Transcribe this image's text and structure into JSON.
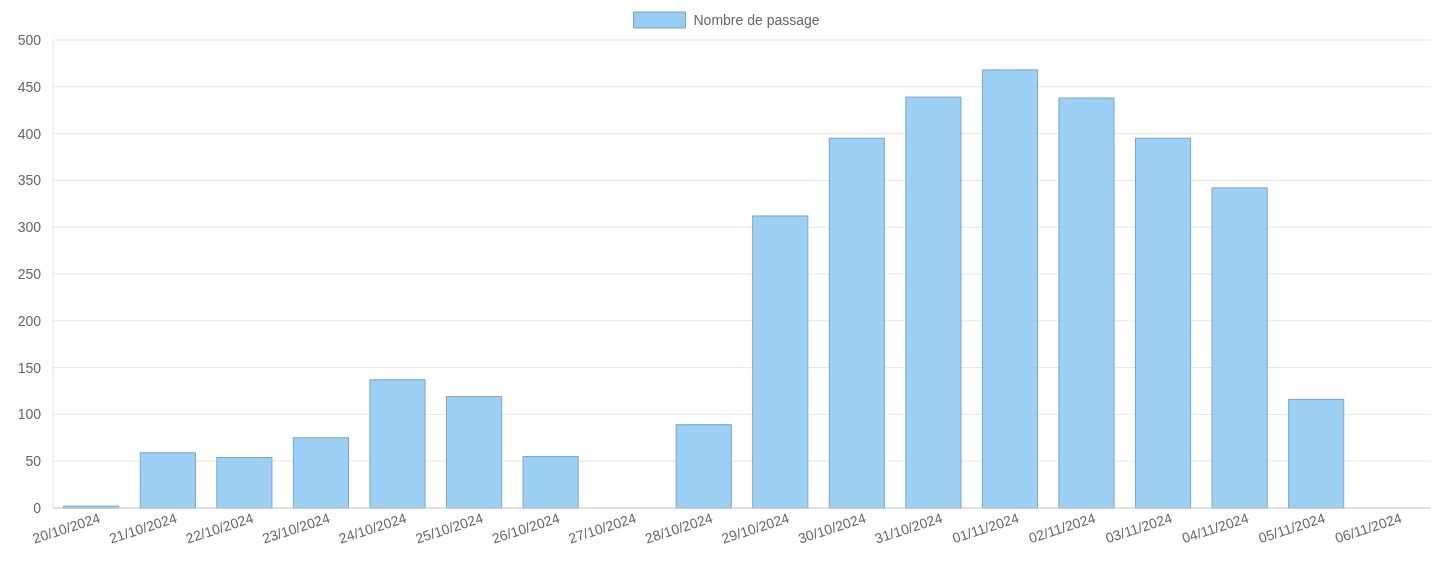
{
  "chart_data": {
    "type": "bar",
    "categories": [
      "20/10/2024",
      "21/10/2024",
      "22/10/2024",
      "23/10/2024",
      "24/10/2024",
      "25/10/2024",
      "26/10/2024",
      "27/10/2024",
      "28/10/2024",
      "29/10/2024",
      "30/10/2024",
      "31/10/2024",
      "01/11/2024",
      "02/11/2024",
      "03/11/2024",
      "04/11/2024",
      "05/11/2024",
      "06/11/2024"
    ],
    "series": [
      {
        "name": "Nombre de passage",
        "color": "#97cdf3",
        "values": [
          2,
          59,
          54,
          75,
          137,
          119,
          55,
          null,
          89,
          312,
          395,
          439,
          468,
          438,
          395,
          342,
          116,
          null
        ]
      }
    ],
    "ylim": [
      0,
      500
    ],
    "yticks": [
      0,
      50,
      100,
      150,
      200,
      250,
      300,
      350,
      400,
      450,
      500
    ],
    "grid": "y",
    "legend": "top"
  }
}
